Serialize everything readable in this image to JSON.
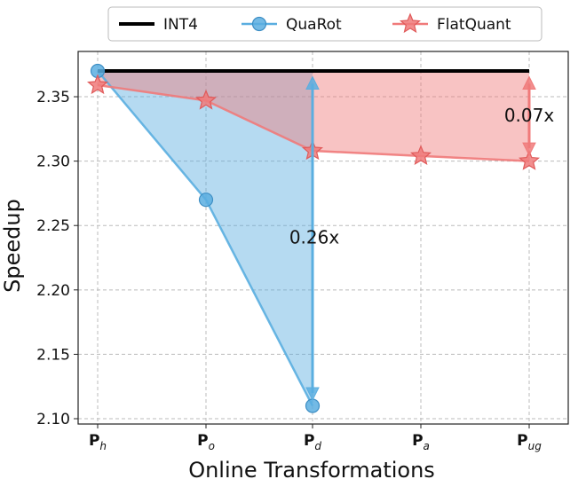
{
  "chart_data": {
    "type": "line",
    "title": "",
    "xlabel": "Online Transformations",
    "ylabel": "Speedup",
    "ylim": [
      2.1,
      2.37
    ],
    "yticks": [
      2.1,
      2.15,
      2.2,
      2.25,
      2.3,
      2.35
    ],
    "grid": true,
    "legend_position": "top",
    "categories": [
      {
        "main": "P",
        "sub": "h"
      },
      {
        "main": "P",
        "sub": "o"
      },
      {
        "main": "P",
        "sub": "d"
      },
      {
        "main": "P",
        "sub": "a"
      },
      {
        "main": "P",
        "sub": "ug"
      }
    ],
    "series": [
      {
        "name": "INT4",
        "color": "#000000",
        "marker": "none",
        "x": [
          0,
          4
        ],
        "values": [
          2.37,
          2.37
        ]
      },
      {
        "name": "QuaRot",
        "color": "#5aaee0",
        "marker": "circle",
        "x": [
          0,
          1,
          2
        ],
        "values": [
          2.37,
          2.27,
          2.11
        ]
      },
      {
        "name": "FlatQuant",
        "color": "#f07a7a",
        "marker": "star",
        "x": [
          0,
          1,
          2,
          3,
          4
        ],
        "values": [
          2.359,
          2.347,
          2.308,
          2.304,
          2.3
        ]
      }
    ],
    "annotations": [
      {
        "text": "0.26x",
        "x": 2,
        "y": 2.24,
        "from": 2.12,
        "to": 2.36,
        "color": "#5aaee0"
      },
      {
        "text": "0.07x",
        "x": 4,
        "y": 2.335,
        "from": 2.31,
        "to": 2.36,
        "color": "#f07a7a"
      }
    ]
  }
}
